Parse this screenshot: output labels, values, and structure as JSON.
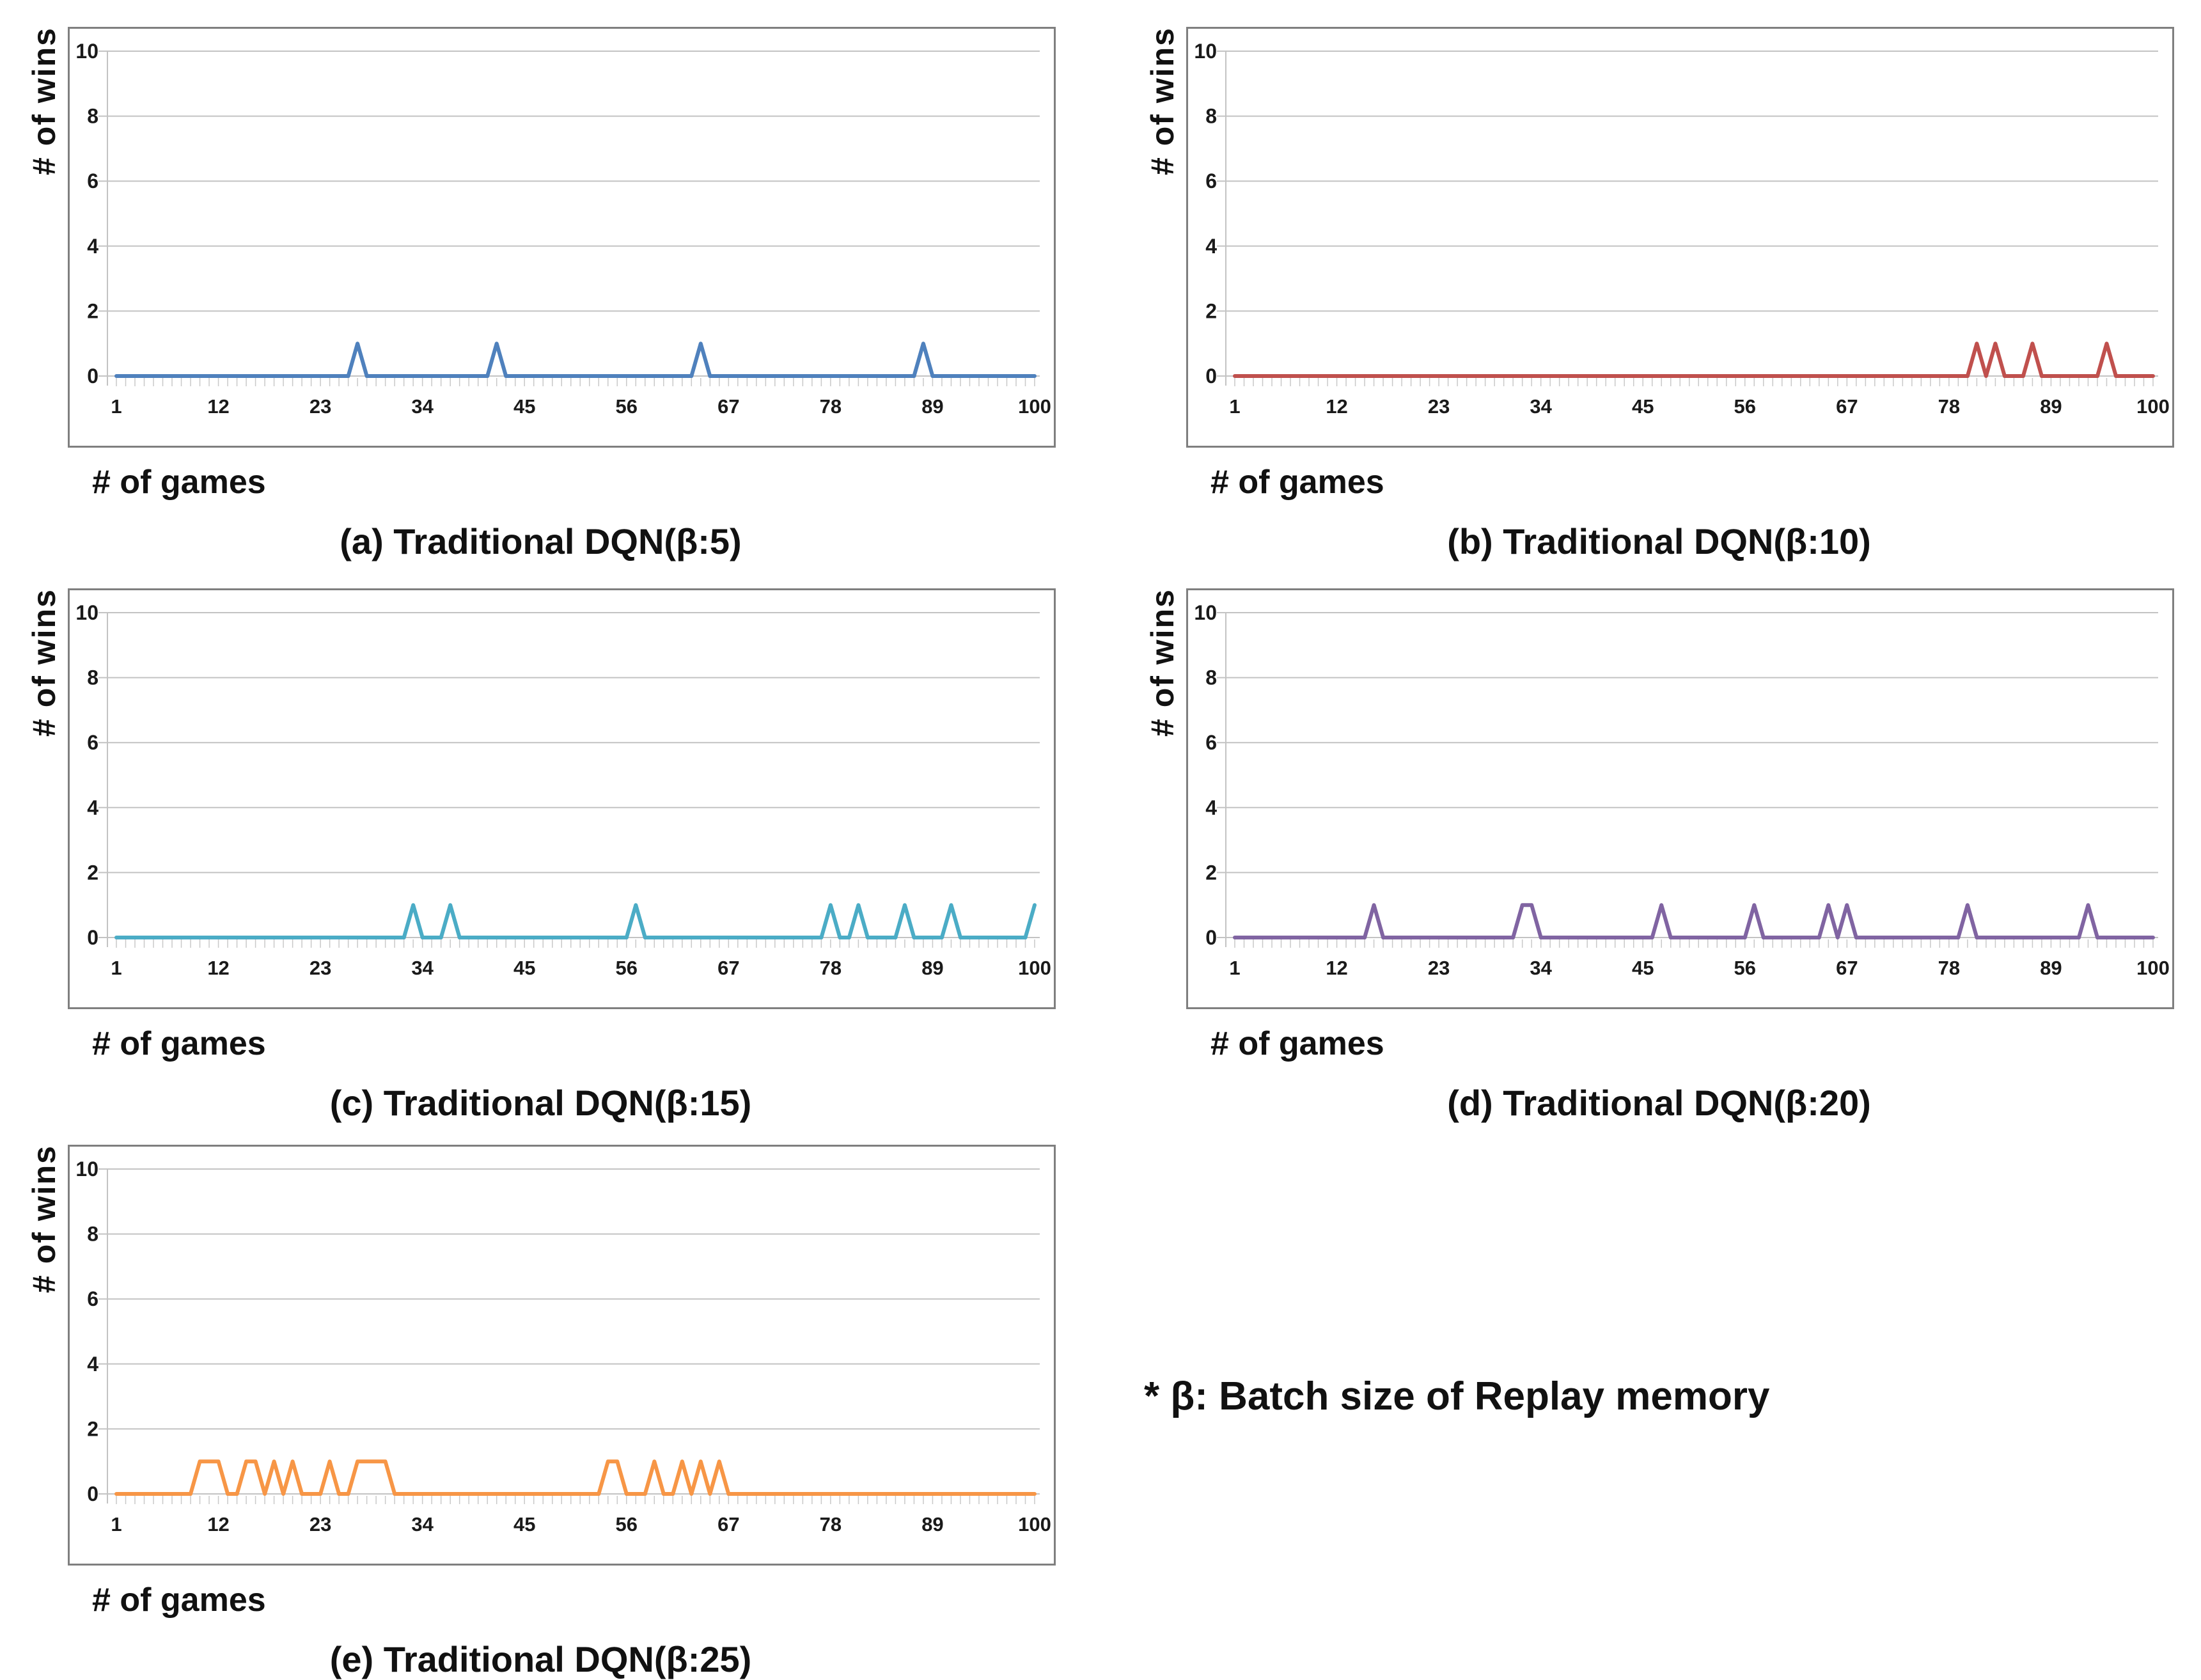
{
  "note": "* β: Batch size of Replay memory",
  "axes": {
    "xlabel": "# of games",
    "ylabel": "# of wins"
  },
  "chart_data": [
    {
      "type": "line",
      "title": "(a) Traditional DQN(β:5)",
      "xlabel": "# of games",
      "ylabel": "# of wins",
      "x_ticks": [
        1,
        12,
        23,
        34,
        45,
        56,
        67,
        78,
        89,
        100
      ],
      "y_ticks": [
        0,
        2,
        4,
        6,
        8,
        10
      ],
      "xlim": [
        1,
        100
      ],
      "ylim": [
        0,
        10
      ],
      "grid": true,
      "legend": "none",
      "line_color": "#4F81BD",
      "baseline_value": 0,
      "win_value": 1,
      "win_games": [
        27,
        42,
        64,
        88
      ]
    },
    {
      "type": "line",
      "title": "(b) Traditional DQN(β:10)",
      "xlabel": "# of games",
      "ylabel": "# of wins",
      "x_ticks": [
        1,
        12,
        23,
        34,
        45,
        56,
        67,
        78,
        89,
        100
      ],
      "y_ticks": [
        0,
        2,
        4,
        6,
        8,
        10
      ],
      "xlim": [
        1,
        100
      ],
      "ylim": [
        0,
        10
      ],
      "grid": true,
      "legend": "none",
      "line_color": "#C0504D",
      "baseline_value": 0,
      "win_value": 1,
      "win_games": [
        81,
        83,
        87,
        95
      ]
    },
    {
      "type": "line",
      "title": "(c) Traditional DQN(β:15)",
      "xlabel": "# of games",
      "ylabel": "# of wins",
      "x_ticks": [
        1,
        12,
        23,
        34,
        45,
        56,
        67,
        78,
        89,
        100
      ],
      "y_ticks": [
        0,
        2,
        4,
        6,
        8,
        10
      ],
      "xlim": [
        1,
        100
      ],
      "ylim": [
        0,
        10
      ],
      "grid": true,
      "legend": "none",
      "line_color": "#4BACC6",
      "baseline_value": 0,
      "win_value": 1,
      "win_games": [
        33,
        37,
        57,
        78,
        81,
        86,
        91,
        100
      ]
    },
    {
      "type": "line",
      "title": "(d) Traditional DQN(β:20)",
      "xlabel": "# of games",
      "ylabel": "# of wins",
      "x_ticks": [
        1,
        12,
        23,
        34,
        45,
        56,
        67,
        78,
        89,
        100
      ],
      "y_ticks": [
        0,
        2,
        4,
        6,
        8,
        10
      ],
      "xlim": [
        1,
        100
      ],
      "ylim": [
        0,
        10
      ],
      "grid": true,
      "legend": "none",
      "line_color": "#8064A2",
      "baseline_value": 0,
      "win_value": 1,
      "win_games": [
        16,
        32,
        33,
        47,
        57,
        65,
        67,
        80,
        93
      ]
    },
    {
      "type": "line",
      "title": "(e) Traditional DQN(β:25)",
      "xlabel": "# of games",
      "ylabel": "# of wins",
      "x_ticks": [
        1,
        12,
        23,
        34,
        45,
        56,
        67,
        78,
        89,
        100
      ],
      "y_ticks": [
        0,
        2,
        4,
        6,
        8,
        10
      ],
      "xlim": [
        1,
        100
      ],
      "ylim": [
        0,
        10
      ],
      "grid": true,
      "legend": "none",
      "line_color": "#F79646",
      "baseline_value": 0,
      "win_value": 1,
      "win_games": [
        10,
        11,
        12,
        15,
        16,
        18,
        20,
        24,
        27,
        28,
        29,
        30,
        54,
        55,
        59,
        62,
        64,
        66
      ]
    }
  ],
  "style": {
    "border_color": "#7F7F7F",
    "grid_color": "#C3C3C3",
    "tick_color": "#C9C9C9",
    "text_color": "#1A1A1A",
    "background": "#FFFFFF"
  }
}
